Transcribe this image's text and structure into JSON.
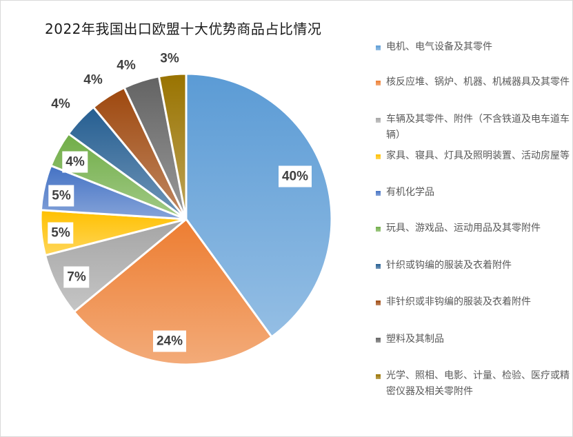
{
  "title": "2022年我国出口欧盟十大优势商品占比情况",
  "chart_data": {
    "type": "pie",
    "title": "2022年我国出口欧盟十大优势商品占比情况",
    "categories": [
      "电机、电气设备及其零件",
      "核反应堆、锅炉、机器、机械器具及其零件",
      "车辆及其零件、附件（不含铁道及电车道车辆）",
      "家具、寝具、灯具及照明装置、活动房屋等",
      "有机化学品",
      "玩具、游戏品、运动用品及其零附件",
      "针织或钩编的服装及衣着附件",
      "非针织或非钩编的服装及衣着附件",
      "塑料及其制品",
      "光学、照相、电影、计量、检验、医疗或精密仪器及相关零附件"
    ],
    "values": [
      40,
      24,
      7,
      5,
      5,
      4,
      4,
      4,
      4,
      3
    ],
    "labels": [
      "40%",
      "24%",
      "7%",
      "5%",
      "5%",
      "4%",
      "4%",
      "4%",
      "4%",
      "3%"
    ],
    "colors": [
      "#5b9bd5",
      "#ed7d31",
      "#a5a5a5",
      "#ffc000",
      "#4472c4",
      "#70ad47",
      "#255e91",
      "#9e480e",
      "#636363",
      "#997300"
    ],
    "start_angle": "12 o'clock, clockwise",
    "legend_position": "right"
  },
  "legend": {
    "items": [
      {
        "text": "电机、电气设备及其零件"
      },
      {
        "text": "核反应堆、锅炉、机器、机械器具及其零件"
      },
      {
        "text": "车辆及其零件、附件（不含铁道及电车道车辆）"
      },
      {
        "text": "家具、寝具、灯具及照明装置、活动房屋等"
      },
      {
        "text": "有机化学品"
      },
      {
        "text": "玩具、游戏品、运动用品及其零附件"
      },
      {
        "text": "针织或钩编的服装及衣着附件"
      },
      {
        "text": "非针织或非钩编的服装及衣着附件"
      },
      {
        "text": "塑料及其制品"
      },
      {
        "text": "光学、照相、电影、计量、检验、医疗或精密仪器及相关零附件"
      }
    ]
  },
  "data_labels": [
    "40%",
    "24%",
    "7%",
    "5%",
    "5%",
    "4%",
    "4%",
    "4%",
    "4%",
    "3%"
  ]
}
